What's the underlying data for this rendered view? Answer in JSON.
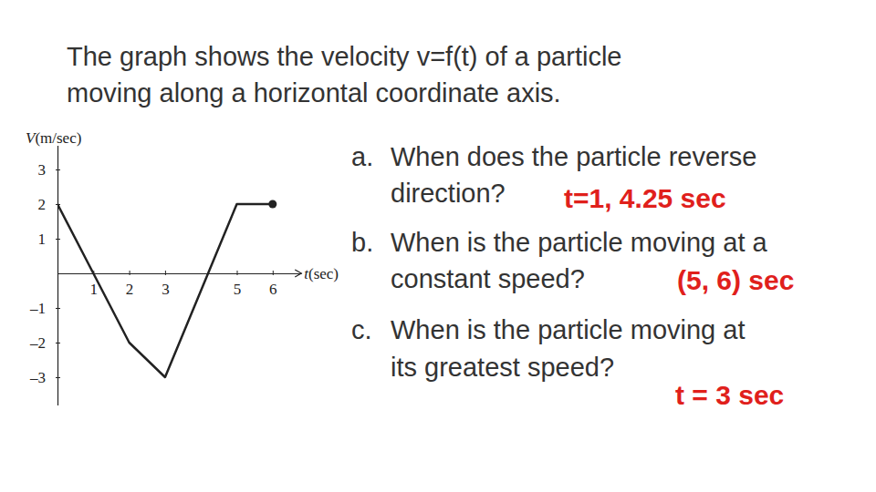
{
  "slide": {
    "title_lines": [
      "The graph shows the velocity v=f(t) of a particle",
      "moving along a horizontal coordinate axis."
    ],
    "questions": [
      {
        "label": "a.",
        "lines": [
          "When does the particle reverse",
          "direction?"
        ],
        "answer": "t=1, 4.25 sec"
      },
      {
        "label": "b.",
        "lines": [
          "When is the particle moving at a",
          "constant speed?"
        ],
        "answer": "(5, 6) sec"
      },
      {
        "label": "c.",
        "lines": [
          "When is the particle moving at",
          "its greatest speed?"
        ],
        "answer": "t = 3 sec"
      }
    ]
  },
  "chart_data": {
    "type": "line",
    "x_label": "t(sec)",
    "y_label": "V(m/sec)",
    "x": [
      0,
      1,
      2,
      3,
      5,
      6
    ],
    "values": [
      2,
      0,
      -2,
      -3,
      2,
      2
    ],
    "color": "#222222",
    "marker": "end",
    "xlim": [
      0,
      6.8
    ],
    "ylim": [
      -3.8,
      3.7
    ],
    "xticks": [
      1,
      2,
      3,
      5,
      6
    ],
    "yticks": [
      {
        "value": -3,
        "label": "–3"
      },
      {
        "value": -2,
        "label": "–2"
      },
      {
        "value": -1,
        "label": "–1"
      },
      1,
      2,
      3
    ]
  }
}
